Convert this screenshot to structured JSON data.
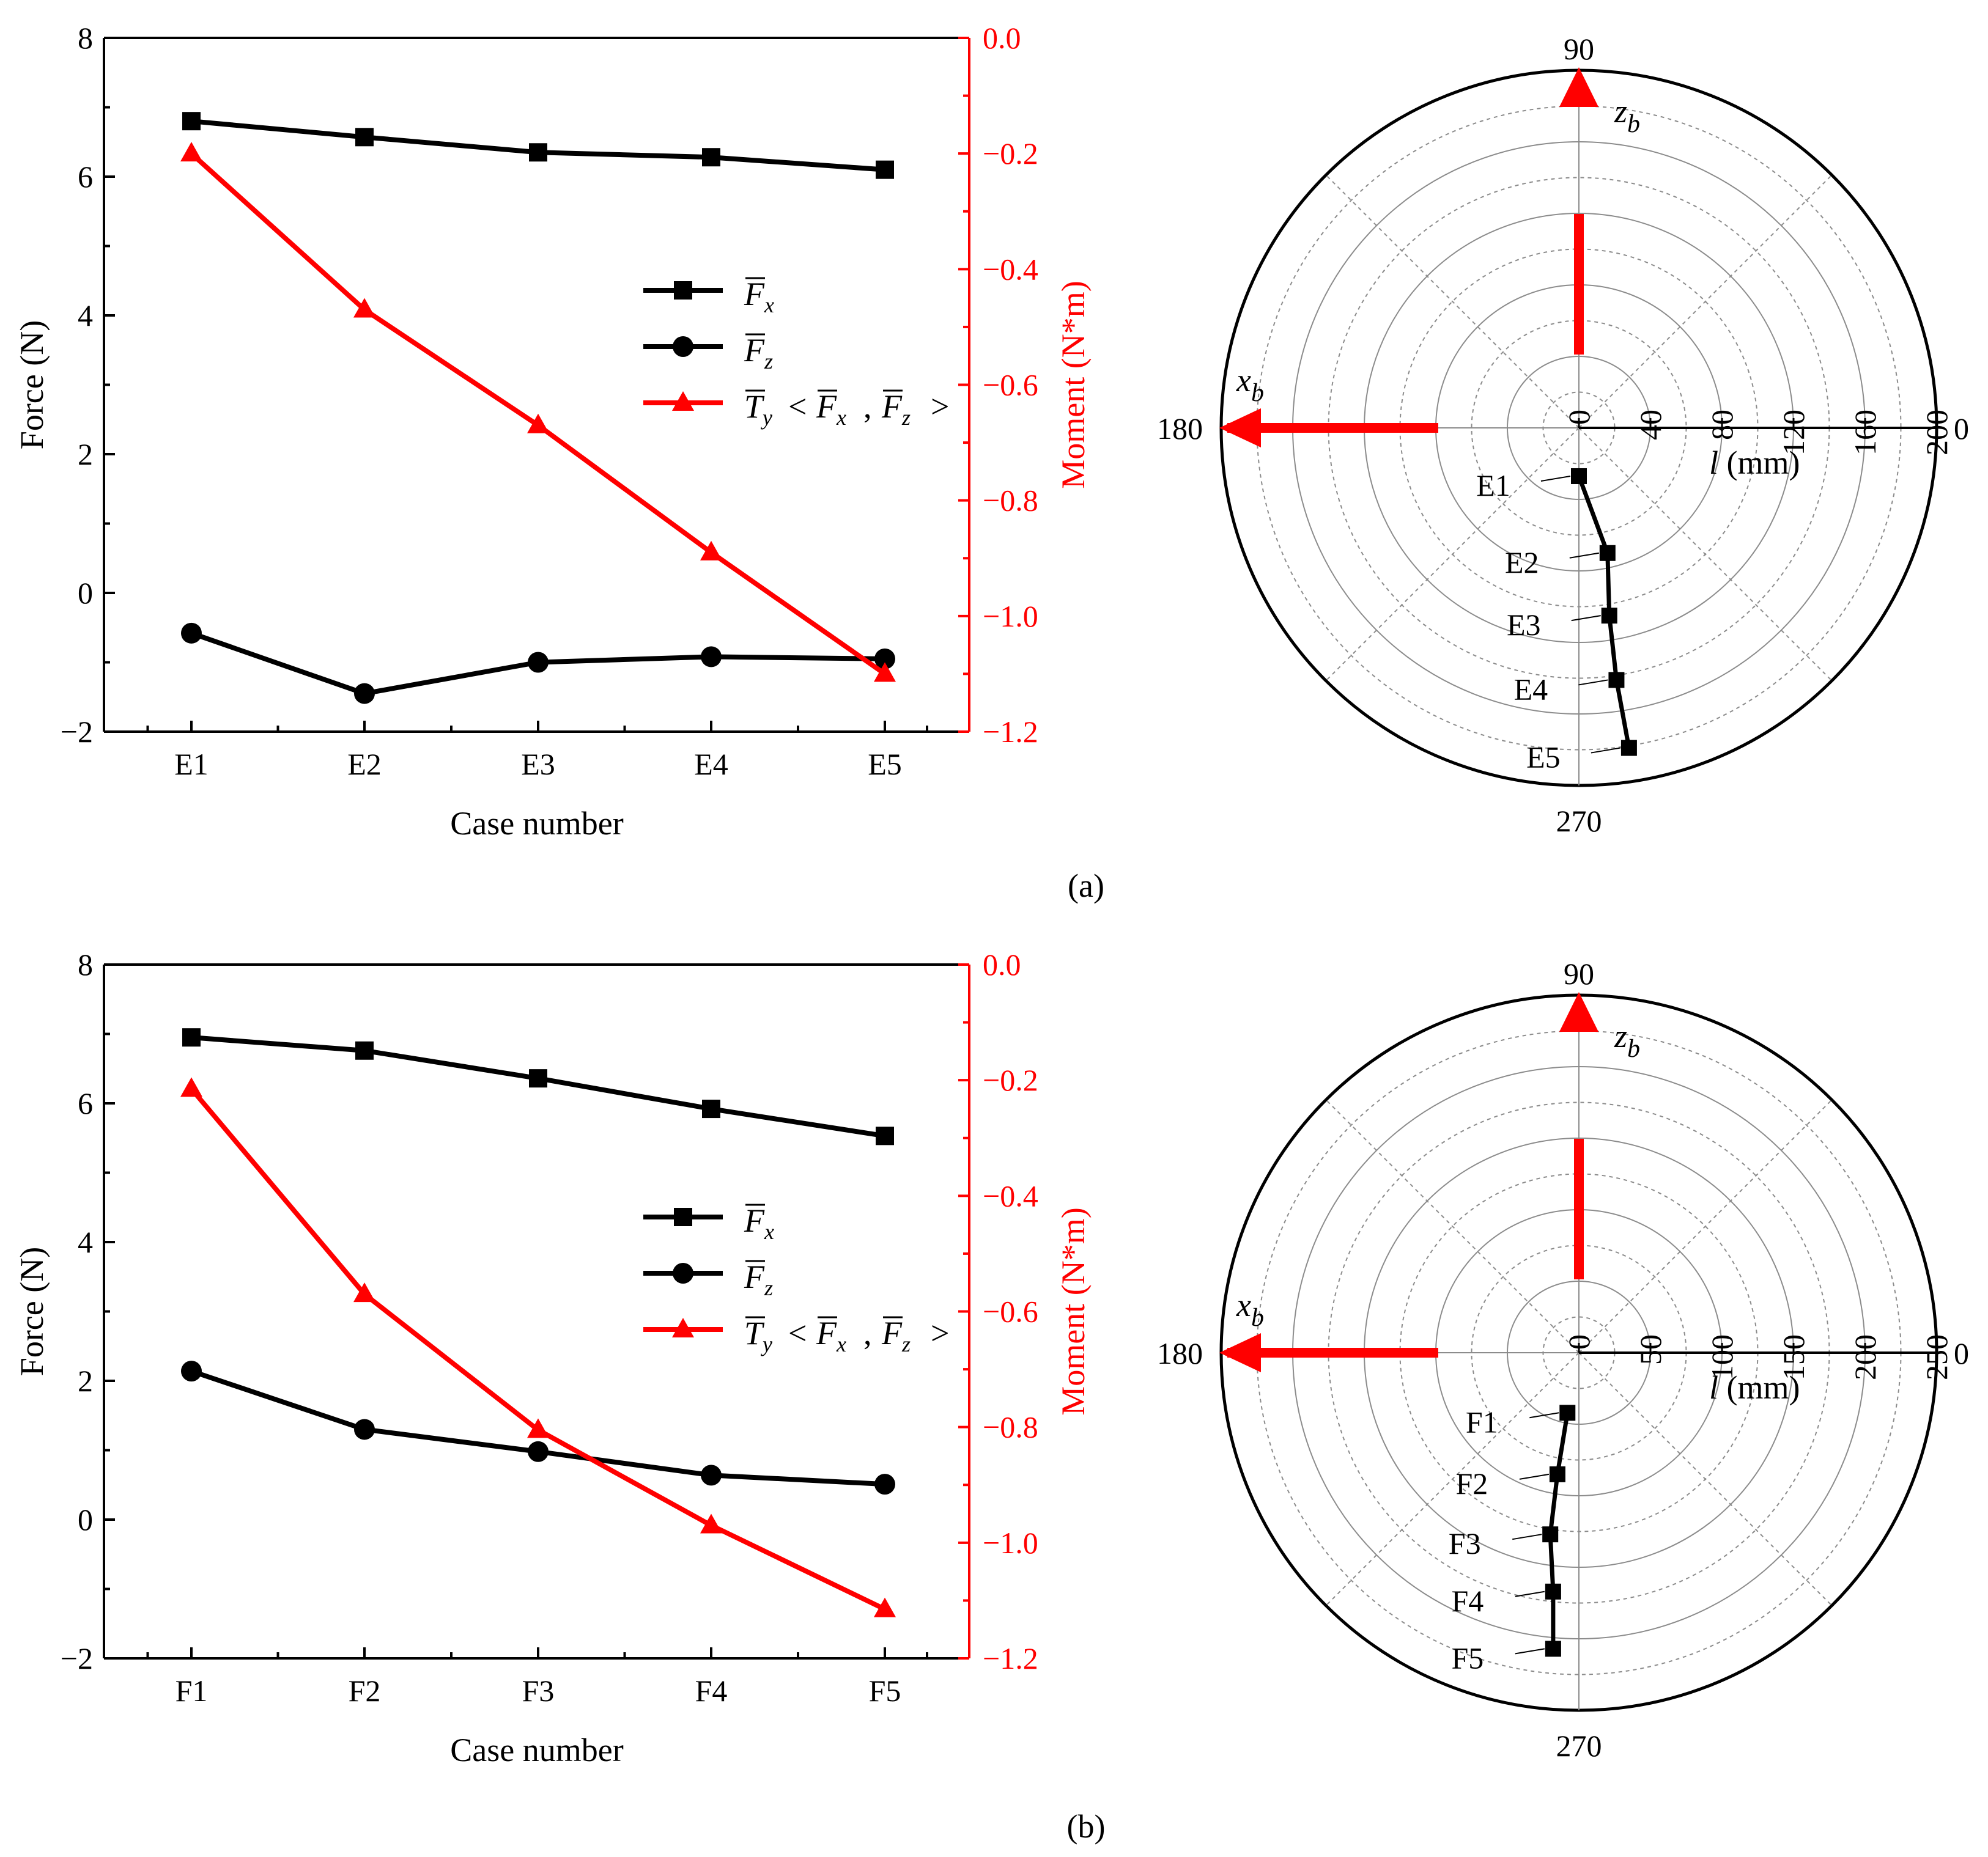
{
  "chart_data": [
    {
      "type": "line",
      "panel": "a",
      "xlabel": "Case number",
      "ylabel": "Force (N)",
      "y2label": "Moment (N*m)",
      "categories": [
        "E1",
        "E2",
        "E3",
        "E4",
        "E5"
      ],
      "ylim": [
        -2,
        8
      ],
      "yticks": [
        "−2",
        "0",
        "2",
        "4",
        "6",
        "8"
      ],
      "y2lim": [
        -1.2,
        0.0
      ],
      "y2ticks": [
        "−1.2",
        "−1.0",
        "−0.8",
        "−0.6",
        "−0.4",
        "−0.2",
        "0.0"
      ],
      "series": [
        {
          "name": "Fx",
          "axis": "left",
          "color": "#000000",
          "marker": "square",
          "values": [
            6.8,
            6.57,
            6.35,
            6.28,
            6.1
          ]
        },
        {
          "name": "Fz",
          "axis": "left",
          "color": "#000000",
          "marker": "circle",
          "values": [
            -0.58,
            -1.45,
            -1.0,
            -0.92,
            -0.95
          ]
        },
        {
          "name": "Ty<Fx,Fz>",
          "axis": "right",
          "color": "#ff0000",
          "marker": "triangle",
          "values": [
            -0.2,
            -0.47,
            -0.67,
            -0.89,
            -1.1
          ]
        }
      ],
      "legend": {
        "placement": "center-right",
        "entries": [
          {
            "symbol": "F",
            "sub": "x"
          },
          {
            "symbol": "F",
            "sub": "z"
          },
          {
            "symbol": "T",
            "sub": "y",
            "extra": true
          }
        ]
      }
    },
    {
      "type": "polar",
      "panel": "a",
      "angle_labels": [
        "90",
        "180",
        "270",
        "0"
      ],
      "r_max": 200,
      "r_ticks": [
        "0",
        "40",
        "80",
        "120",
        "160",
        "200"
      ],
      "r_label_symbol": "l",
      "r_label_unit": "(mm)",
      "axis_labels": {
        "x": "x",
        "x_sub": "b",
        "z": "z",
        "z_sub": "b"
      },
      "points": [
        {
          "label": "E1",
          "x": 0,
          "y": -27
        },
        {
          "label": "E2",
          "x": 16,
          "y": -70
        },
        {
          "label": "E3",
          "x": 17,
          "y": -105
        },
        {
          "label": "E4",
          "x": 21,
          "y": -141
        },
        {
          "label": "E5",
          "x": 28,
          "y": -179
        }
      ]
    },
    {
      "type": "line",
      "panel": "b",
      "xlabel": "Case number",
      "ylabel": "Force (N)",
      "y2label": "Moment (N*m)",
      "categories": [
        "F1",
        "F2",
        "F3",
        "F4",
        "F5"
      ],
      "ylim": [
        -2,
        8
      ],
      "yticks": [
        "−2",
        "0",
        "2",
        "4",
        "6",
        "8"
      ],
      "y2lim": [
        -1.2,
        0.0
      ],
      "y2ticks": [
        "−1.2",
        "−1.0",
        "−0.8",
        "−0.6",
        "−0.4",
        "−0.2",
        "0.0"
      ],
      "series": [
        {
          "name": "Fx",
          "axis": "left",
          "color": "#000000",
          "marker": "square",
          "values": [
            6.95,
            6.76,
            6.36,
            5.92,
            5.53
          ]
        },
        {
          "name": "Fz",
          "axis": "left",
          "color": "#000000",
          "marker": "circle",
          "values": [
            2.14,
            1.3,
            0.98,
            0.64,
            0.51
          ]
        },
        {
          "name": "Ty<Fx,Fz>",
          "axis": "right",
          "color": "#ff0000",
          "marker": "triangle",
          "values": [
            -0.215,
            -0.57,
            -0.805,
            -0.97,
            -1.115
          ]
        }
      ],
      "legend": {
        "placement": "center-right",
        "entries": [
          {
            "symbol": "F",
            "sub": "x"
          },
          {
            "symbol": "F",
            "sub": "z"
          },
          {
            "symbol": "T",
            "sub": "y",
            "extra": true
          }
        ]
      }
    },
    {
      "type": "polar",
      "panel": "b",
      "angle_labels": [
        "90",
        "180",
        "270",
        "0"
      ],
      "r_max": 250,
      "r_ticks": [
        "0",
        "50",
        "100",
        "150",
        "200",
        "250"
      ],
      "r_label_symbol": "l",
      "r_label_unit": "(mm)",
      "axis_labels": {
        "x": "x",
        "x_sub": "b",
        "z": "z",
        "z_sub": "b"
      },
      "points": [
        {
          "label": "F1",
          "x": -8,
          "y": -42
        },
        {
          "label": "F2",
          "x": -15,
          "y": -85
        },
        {
          "label": "F3",
          "x": -20,
          "y": -127
        },
        {
          "label": "F4",
          "x": -18,
          "y": -167
        },
        {
          "label": "F5",
          "x": -18,
          "y": -207
        }
      ]
    }
  ],
  "captions": [
    "(a)",
    "(b)"
  ]
}
